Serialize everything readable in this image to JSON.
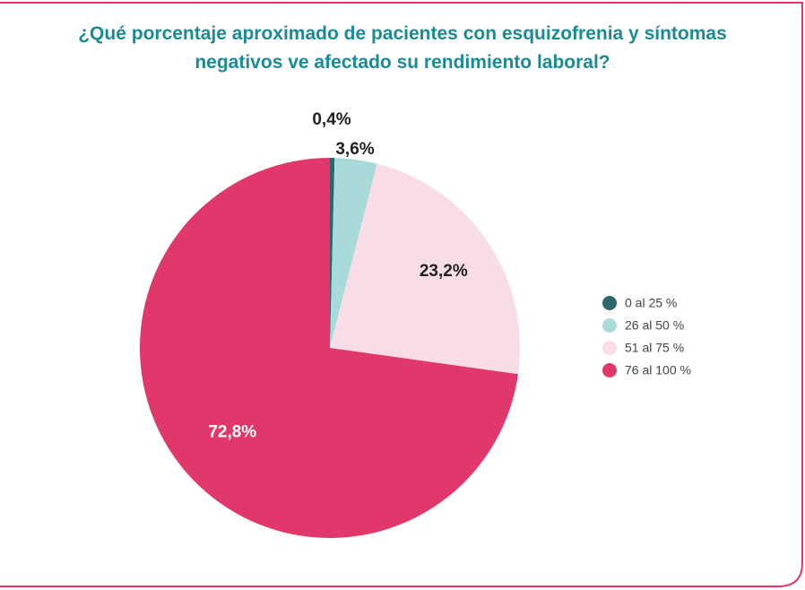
{
  "chart_data": {
    "type": "pie",
    "title": "¿Qué porcentaje aproximado de pacientes con esquizofrenia y síntomas negativos ve afectado su rendimiento laboral?",
    "categories": [
      "0 al 25 %",
      "26 al 50 %",
      "51 al 75 %",
      "76 al 100 %"
    ],
    "values": [
      0.4,
      3.6,
      23.2,
      72.8
    ],
    "value_labels": [
      "0,4%",
      "3,6%",
      "23,2%",
      "72,8%"
    ],
    "colors": [
      "#2d676b",
      "#a9d9d9",
      "#f9dde6",
      "#e0386b"
    ],
    "legend": "right"
  }
}
